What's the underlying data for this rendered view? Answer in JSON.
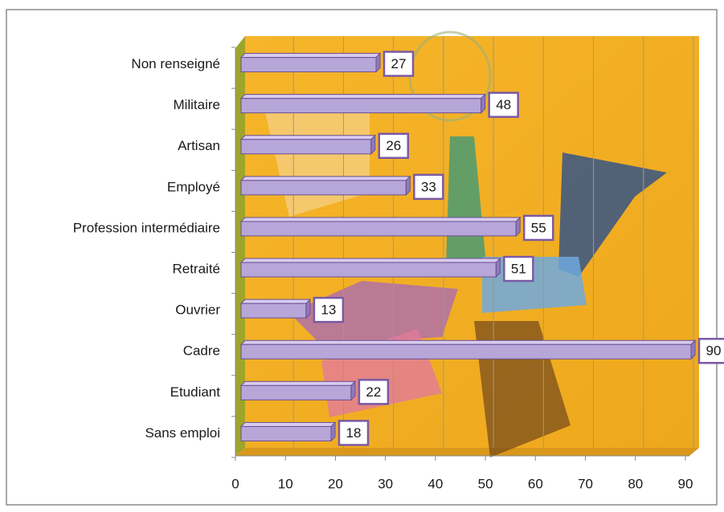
{
  "chart_data": {
    "type": "bar",
    "orientation": "horizontal",
    "categories": [
      "Non renseigné",
      "Militaire",
      "Artisan",
      "Employé",
      "Profession intermédiaire",
      "Retraité",
      "Ouvrier",
      "Cadre",
      "Etudiant",
      "Sans emploi"
    ],
    "values": [
      27,
      48,
      26,
      33,
      55,
      51,
      13,
      90,
      22,
      18
    ],
    "color": "#b7a6d8",
    "xlim": [
      0,
      90
    ],
    "xticks": [
      0,
      10,
      20,
      30,
      40,
      50,
      60,
      70,
      80,
      90
    ],
    "grid": true
  }
}
